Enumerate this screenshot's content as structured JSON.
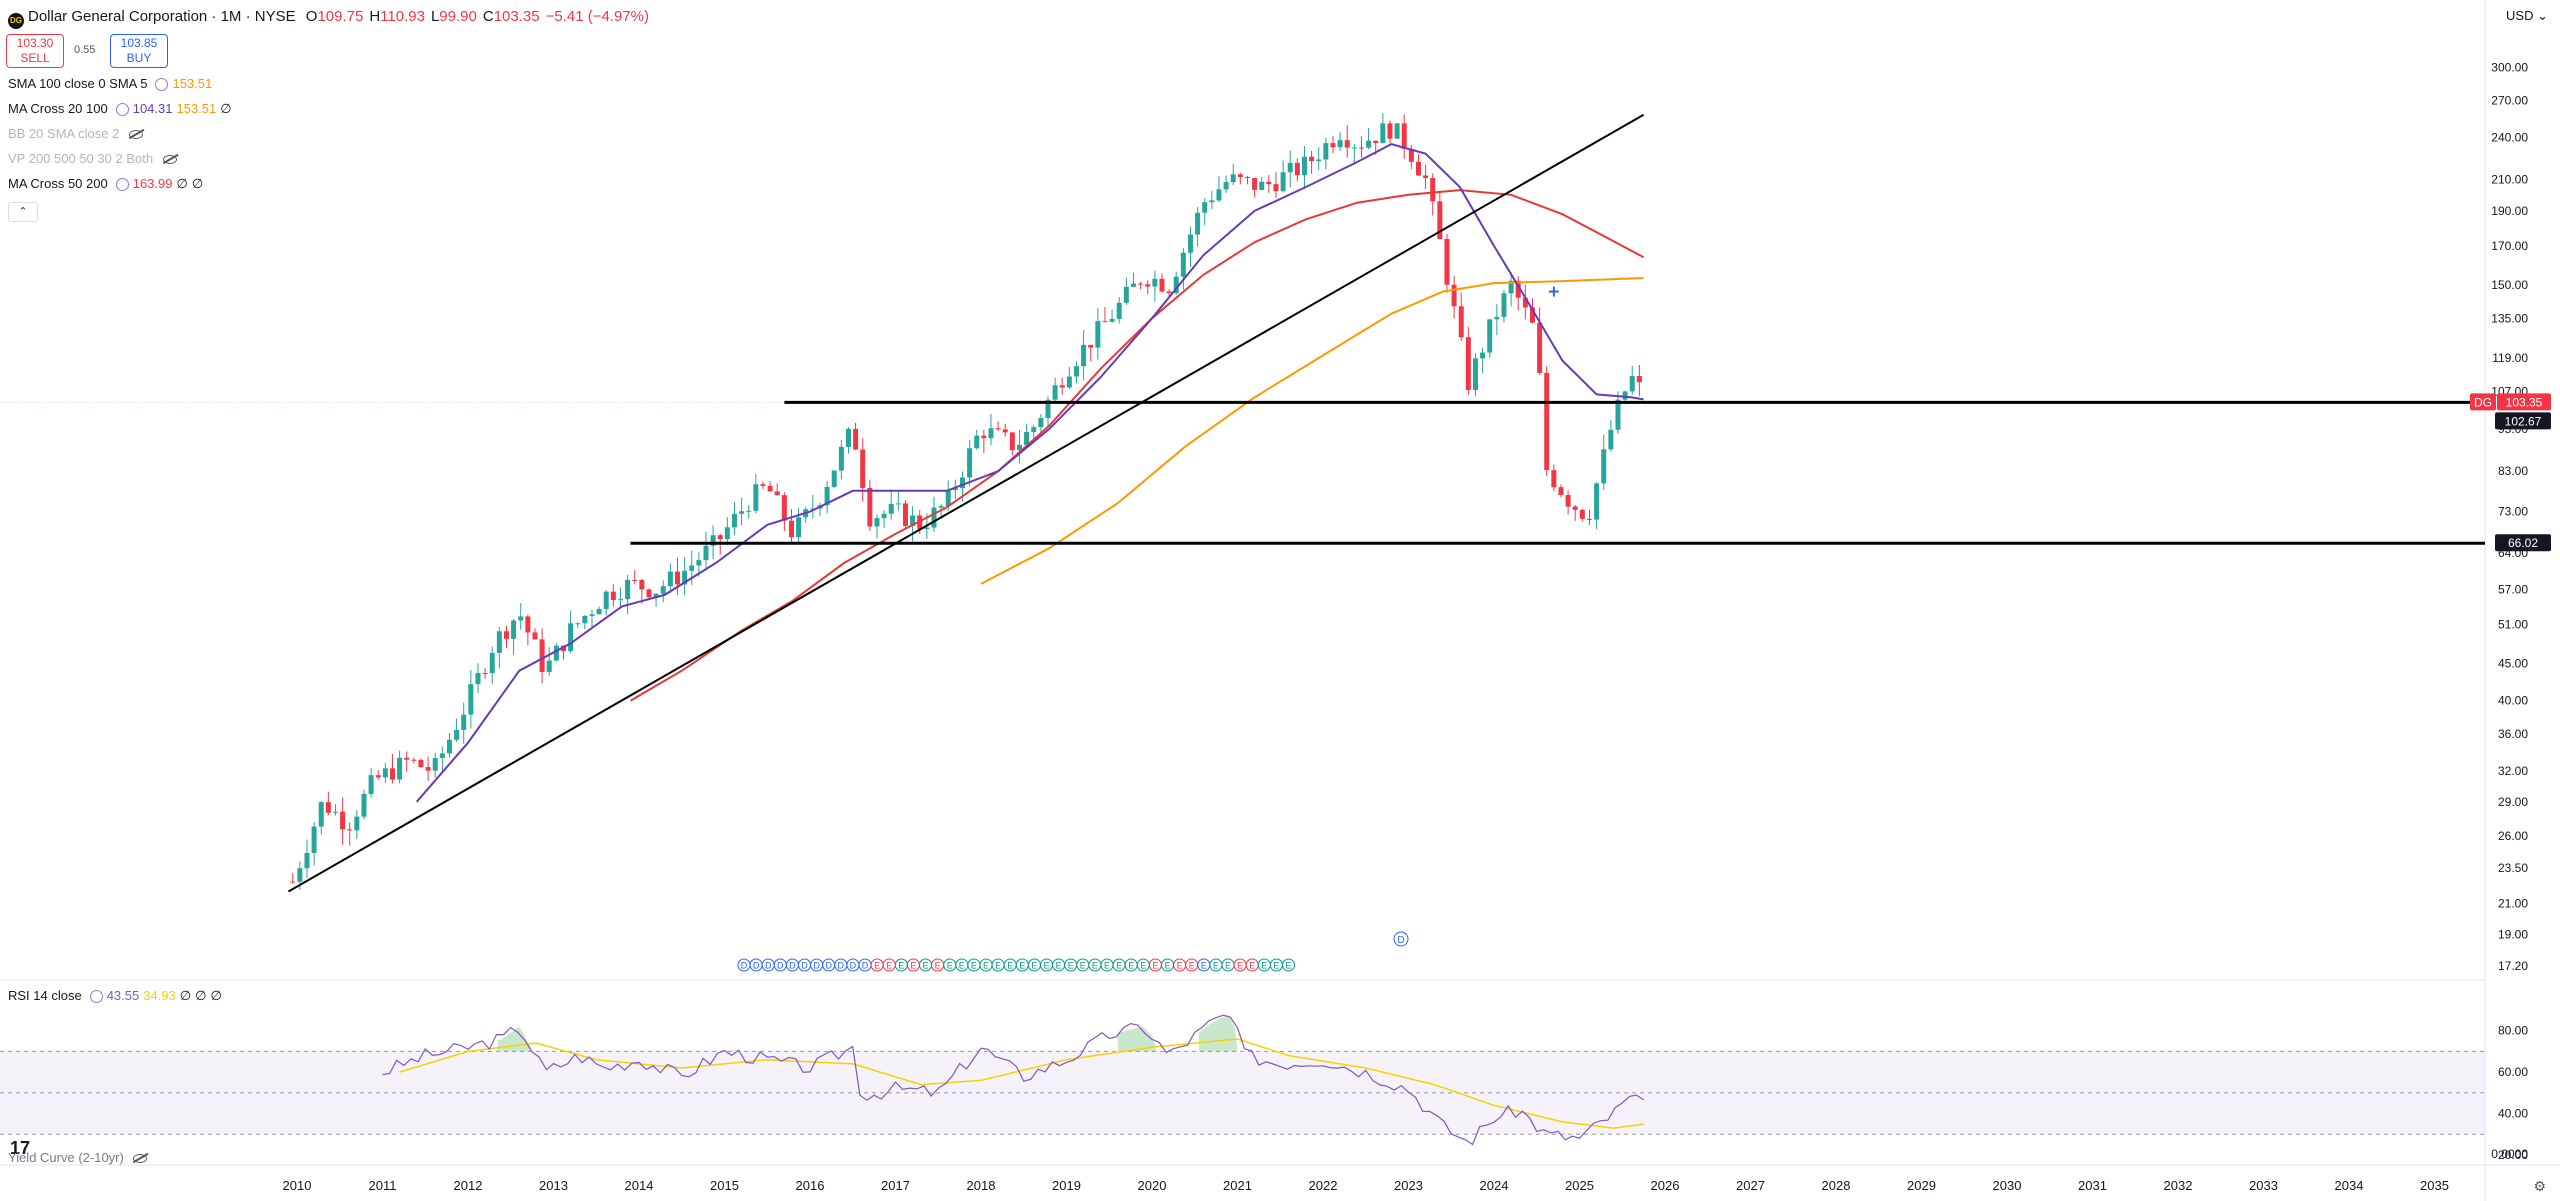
{
  "header": {
    "title": "Dollar General Corporation · 1M · NYSE",
    "ohlc": [
      {
        "k": "O",
        "v": "109.75"
      },
      {
        "k": "H",
        "v": "110.93"
      },
      {
        "k": "L",
        "v": "99.90"
      },
      {
        "k": "C",
        "v": "103.35"
      },
      {
        "k": "",
        "v": "−5.41 (−4.97%)"
      }
    ],
    "sell_price": "103.30",
    "sell_label": "SELL",
    "spread": "0.55",
    "buy_price": "103.85",
    "buy_label": "BUY",
    "currency": "USD"
  },
  "indicators": [
    {
      "label": "SMA 100 close 0 SMA 5",
      "values": [
        "153.51"
      ],
      "value_colors": [
        "#ff9800"
      ],
      "faded": false,
      "icon": "settings-circle-icon"
    },
    {
      "label": "MA Cross 20 100",
      "values": [
        "104.31",
        "153.51",
        "∅"
      ],
      "value_colors": [
        "#673ab7",
        "#ff9800",
        "#131722"
      ],
      "faded": false,
      "icon": "settings-circle-icon"
    },
    {
      "label": "BB 20 SMA close 2",
      "values": [],
      "value_colors": [],
      "faded": true,
      "icon": "eye-hidden-icon"
    },
    {
      "label": "VP 200 500 50 30 2 Both",
      "values": [],
      "value_colors": [],
      "faded": true,
      "icon": "eye-hidden-icon"
    },
    {
      "label": "MA Cross 50 200",
      "values": [
        "163.99",
        "∅",
        "∅"
      ],
      "value_colors": [
        "#f23645",
        "#131722",
        "#131722"
      ],
      "faded": false,
      "icon": "settings-circle-icon"
    }
  ],
  "rsi_legend": {
    "label": "RSI 14 close",
    "values": [
      "43.55",
      "34.93",
      "∅",
      "∅",
      "∅"
    ],
    "value_colors": [
      "#7e57c2",
      "#f7d200",
      "#131722",
      "#131722",
      "#131722"
    ]
  },
  "yield_legend": "Yield Curve (2-10yr)",
  "colors": {
    "up": "#26a69a",
    "down": "#f23645",
    "sma20": "#673ab7",
    "sma100": "#ff9800",
    "sma200": "#e53935",
    "rsi": "#7e57c2",
    "rsi_ma": "#f7d200"
  },
  "chart_data": {
    "type": "candlestick",
    "scale": "log",
    "ylim": [
      17.2,
      315
    ],
    "y_ticks": [
      "300.00",
      "270.00",
      "240.00",
      "210.00",
      "190.00",
      "170.00",
      "150.00",
      "135.00",
      "119.00",
      "107.00",
      "95.00",
      "83.00",
      "73.00",
      "64.00",
      "57.00",
      "51.00",
      "45.00",
      "40.00",
      "36.00",
      "32.00",
      "29.00",
      "26.00",
      "23.50",
      "21.00",
      "19.00",
      "17.20"
    ],
    "x_ticks": [
      "2010",
      "2011",
      "2012",
      "2013",
      "2014",
      "2015",
      "2016",
      "2017",
      "2018",
      "2019",
      "2020",
      "2021",
      "2022",
      "2023",
      "2024",
      "2025",
      "2026",
      "2027",
      "2028",
      "2029",
      "2030",
      "2031",
      "2032",
      "2033",
      "2034",
      "2035"
    ],
    "price_labels": [
      {
        "text": "DG",
        "value": 103.35,
        "color": "#f23645"
      },
      {
        "text": "103.35",
        "value": 103.35,
        "color": "#f23645"
      },
      {
        "text": "102.67",
        "value": 102.67,
        "color": "#131722"
      },
      {
        "text": "66.02",
        "value": 66.02,
        "color": "#131722"
      }
    ],
    "monthly_close_anchors": [
      {
        "t": 2009.95,
        "v": 22.5
      },
      {
        "t": 2010.3,
        "v": 29
      },
      {
        "t": 2010.6,
        "v": 27
      },
      {
        "t": 2010.9,
        "v": 31
      },
      {
        "t": 2011.3,
        "v": 33
      },
      {
        "t": 2011.6,
        "v": 32
      },
      {
        "t": 2012.0,
        "v": 40
      },
      {
        "t": 2012.3,
        "v": 48
      },
      {
        "t": 2012.6,
        "v": 53
      },
      {
        "t": 2012.9,
        "v": 44
      },
      {
        "t": 2013.2,
        "v": 50
      },
      {
        "t": 2013.6,
        "v": 56
      },
      {
        "t": 2013.9,
        "v": 58
      },
      {
        "t": 2014.2,
        "v": 57
      },
      {
        "t": 2014.5,
        "v": 60
      },
      {
        "t": 2014.9,
        "v": 66
      },
      {
        "t": 2015.3,
        "v": 76
      },
      {
        "t": 2015.5,
        "v": 79
      },
      {
        "t": 2015.8,
        "v": 68
      },
      {
        "t": 2016.1,
        "v": 76
      },
      {
        "t": 2016.5,
        "v": 95
      },
      {
        "t": 2016.7,
        "v": 72
      },
      {
        "t": 2017.0,
        "v": 73
      },
      {
        "t": 2017.3,
        "v": 70
      },
      {
        "t": 2017.6,
        "v": 75
      },
      {
        "t": 2018.0,
        "v": 95
      },
      {
        "t": 2018.4,
        "v": 90
      },
      {
        "t": 2018.6,
        "v": 95
      },
      {
        "t": 2019.0,
        "v": 115
      },
      {
        "t": 2019.5,
        "v": 135
      },
      {
        "t": 2019.9,
        "v": 155
      },
      {
        "t": 2020.2,
        "v": 150
      },
      {
        "t": 2020.6,
        "v": 195
      },
      {
        "t": 2020.9,
        "v": 210
      },
      {
        "t": 2021.3,
        "v": 205
      },
      {
        "t": 2021.8,
        "v": 220
      },
      {
        "t": 2022.2,
        "v": 245
      },
      {
        "t": 2022.4,
        "v": 235
      },
      {
        "t": 2022.8,
        "v": 248
      },
      {
        "t": 2023.0,
        "v": 232
      },
      {
        "t": 2023.2,
        "v": 210
      },
      {
        "t": 2023.4,
        "v": 165
      },
      {
        "t": 2023.7,
        "v": 110
      },
      {
        "t": 2024.0,
        "v": 135
      },
      {
        "t": 2024.2,
        "v": 150
      },
      {
        "t": 2024.5,
        "v": 128
      },
      {
        "t": 2024.6,
        "v": 84
      },
      {
        "t": 2024.9,
        "v": 75
      },
      {
        "t": 2025.1,
        "v": 72
      },
      {
        "t": 2025.4,
        "v": 98
      },
      {
        "t": 2025.6,
        "v": 112
      },
      {
        "t": 2025.7,
        "v": 108
      },
      {
        "t": 2025.75,
        "v": 103.35
      }
    ],
    "sma20": [
      {
        "t": 2011.4,
        "v": 29
      },
      {
        "t": 2012.0,
        "v": 35
      },
      {
        "t": 2012.6,
        "v": 44
      },
      {
        "t": 2013.2,
        "v": 48
      },
      {
        "t": 2013.8,
        "v": 54
      },
      {
        "t": 2014.3,
        "v": 56
      },
      {
        "t": 2014.9,
        "v": 62
      },
      {
        "t": 2015.5,
        "v": 70
      },
      {
        "t": 2016.0,
        "v": 73
      },
      {
        "t": 2016.5,
        "v": 78
      },
      {
        "t": 2017.0,
        "v": 78
      },
      {
        "t": 2017.6,
        "v": 78
      },
      {
        "t": 2018.2,
        "v": 83
      },
      {
        "t": 2018.8,
        "v": 95
      },
      {
        "t": 2019.4,
        "v": 112
      },
      {
        "t": 2020.0,
        "v": 135
      },
      {
        "t": 2020.6,
        "v": 165
      },
      {
        "t": 2021.2,
        "v": 190
      },
      {
        "t": 2021.8,
        "v": 205
      },
      {
        "t": 2022.4,
        "v": 222
      },
      {
        "t": 2022.8,
        "v": 235
      },
      {
        "t": 2023.2,
        "v": 228
      },
      {
        "t": 2023.6,
        "v": 205
      },
      {
        "t": 2024.0,
        "v": 170
      },
      {
        "t": 2024.4,
        "v": 142
      },
      {
        "t": 2024.8,
        "v": 118
      },
      {
        "t": 2025.2,
        "v": 106
      },
      {
        "t": 2025.6,
        "v": 105
      },
      {
        "t": 2025.75,
        "v": 104.31
      }
    ],
    "sma100": [
      {
        "t": 2018.0,
        "v": 58
      },
      {
        "t": 2018.8,
        "v": 65
      },
      {
        "t": 2019.6,
        "v": 75
      },
      {
        "t": 2020.4,
        "v": 90
      },
      {
        "t": 2021.2,
        "v": 105
      },
      {
        "t": 2022.0,
        "v": 120
      },
      {
        "t": 2022.8,
        "v": 137
      },
      {
        "t": 2023.4,
        "v": 147
      },
      {
        "t": 2024.0,
        "v": 151
      },
      {
        "t": 2024.8,
        "v": 152
      },
      {
        "t": 2025.75,
        "v": 153.51
      }
    ],
    "sma200": [
      {
        "t": 2013.9,
        "v": 40
      },
      {
        "t": 2014.5,
        "v": 44
      },
      {
        "t": 2015.2,
        "v": 50
      },
      {
        "t": 2015.8,
        "v": 55
      },
      {
        "t": 2016.4,
        "v": 62
      },
      {
        "t": 2017.0,
        "v": 68
      },
      {
        "t": 2017.6,
        "v": 74
      },
      {
        "t": 2018.2,
        "v": 83
      },
      {
        "t": 2018.8,
        "v": 96
      },
      {
        "t": 2019.4,
        "v": 115
      },
      {
        "t": 2020.0,
        "v": 135
      },
      {
        "t": 2020.6,
        "v": 155
      },
      {
        "t": 2021.2,
        "v": 172
      },
      {
        "t": 2021.8,
        "v": 185
      },
      {
        "t": 2022.4,
        "v": 195
      },
      {
        "t": 2023.0,
        "v": 200
      },
      {
        "t": 2023.6,
        "v": 203
      },
      {
        "t": 2024.2,
        "v": 200
      },
      {
        "t": 2024.8,
        "v": 188
      },
      {
        "t": 2025.3,
        "v": 175
      },
      {
        "t": 2025.75,
        "v": 163.99
      }
    ],
    "horizontal_lines": [
      {
        "from": 2015.7,
        "value": 103.35
      },
      {
        "from": 2013.9,
        "value": 66.02
      }
    ],
    "trend_line": {
      "start": {
        "t": 2009.9,
        "v": 21.8
      },
      "end": {
        "t": 2025.75,
        "v": 258
      }
    },
    "events": {
      "row": [
        "D",
        "D",
        "D",
        "D",
        "D",
        "D",
        "D",
        "D",
        "D",
        "D",
        "D",
        "E",
        "E",
        "E",
        "E",
        "E",
        "E",
        "E",
        "E",
        "E",
        "E",
        "E",
        "E",
        "E",
        "E",
        "E",
        "E",
        "E",
        "E",
        "E",
        "E",
        "E",
        "E",
        "E",
        "E",
        "E",
        "E",
        "E",
        "E",
        "E",
        "E",
        "E",
        "E",
        "E",
        "E",
        "E"
      ],
      "colors": [
        "b",
        "b",
        "b",
        "b",
        "b",
        "b",
        "b",
        "b",
        "b",
        "b",
        "b",
        "r",
        "r",
        "g",
        "r",
        "g",
        "r",
        "g",
        "g",
        "g",
        "g",
        "g",
        "g",
        "g",
        "g",
        "g",
        "g",
        "g",
        "g",
        "g",
        "g",
        "g",
        "g",
        "g",
        "r",
        "g",
        "r",
        "r",
        "b",
        "g",
        "g",
        "r",
        "r",
        "g",
        "g",
        "g"
      ],
      "above": "D"
    },
    "rsi": {
      "ylim": [
        20,
        90
      ],
      "ticks": [
        "80.00",
        "60.00",
        "40.00",
        "20.00"
      ],
      "band": [
        30,
        70
      ],
      "legend_values": [
        "43.55",
        "34.93"
      ],
      "anchors": [
        {
          "t": 2011.0,
          "v": 60
        },
        {
          "t": 2011.5,
          "v": 68
        },
        {
          "t": 2012.0,
          "v": 72
        },
        {
          "t": 2012.4,
          "v": 76
        },
        {
          "t": 2012.6,
          "v": 82
        },
        {
          "t": 2012.9,
          "v": 60
        },
        {
          "t": 2013.3,
          "v": 68
        },
        {
          "t": 2013.6,
          "v": 62
        },
        {
          "t": 2014.0,
          "v": 66
        },
        {
          "t": 2014.5,
          "v": 58
        },
        {
          "t": 2015.0,
          "v": 70
        },
        {
          "t": 2015.5,
          "v": 66
        },
        {
          "t": 2016.0,
          "v": 62
        },
        {
          "t": 2016.5,
          "v": 72
        },
        {
          "t": 2016.6,
          "v": 48
        },
        {
          "t": 2017.0,
          "v": 52
        },
        {
          "t": 2017.5,
          "v": 50
        },
        {
          "t": 2018.0,
          "v": 72
        },
        {
          "t": 2018.5,
          "v": 58
        },
        {
          "t": 2019.0,
          "v": 66
        },
        {
          "t": 2019.5,
          "v": 78
        },
        {
          "t": 2019.9,
          "v": 82
        },
        {
          "t": 2020.2,
          "v": 68
        },
        {
          "t": 2020.7,
          "v": 84
        },
        {
          "t": 2020.9,
          "v": 88
        },
        {
          "t": 2021.1,
          "v": 68
        },
        {
          "t": 2021.5,
          "v": 64
        },
        {
          "t": 2022.0,
          "v": 66
        },
        {
          "t": 2022.5,
          "v": 60
        },
        {
          "t": 2023.0,
          "v": 52
        },
        {
          "t": 2023.4,
          "v": 34
        },
        {
          "t": 2023.7,
          "v": 26
        },
        {
          "t": 2024.0,
          "v": 38
        },
        {
          "t": 2024.3,
          "v": 42
        },
        {
          "t": 2024.6,
          "v": 30
        },
        {
          "t": 2025.0,
          "v": 28
        },
        {
          "t": 2025.4,
          "v": 40
        },
        {
          "t": 2025.6,
          "v": 48
        },
        {
          "t": 2025.75,
          "v": 43.55
        }
      ],
      "ma_anchors": [
        {
          "t": 2011.2,
          "v": 60
        },
        {
          "t": 2012.0,
          "v": 70
        },
        {
          "t": 2012.8,
          "v": 74
        },
        {
          "t": 2013.5,
          "v": 66
        },
        {
          "t": 2014.5,
          "v": 62
        },
        {
          "t": 2015.5,
          "v": 66
        },
        {
          "t": 2016.5,
          "v": 64
        },
        {
          "t": 2017.3,
          "v": 54
        },
        {
          "t": 2018.0,
          "v": 56
        },
        {
          "t": 2019.0,
          "v": 66
        },
        {
          "t": 2020.0,
          "v": 72
        },
        {
          "t": 2021.0,
          "v": 76
        },
        {
          "t": 2021.6,
          "v": 68
        },
        {
          "t": 2022.5,
          "v": 62
        },
        {
          "t": 2023.3,
          "v": 54
        },
        {
          "t": 2024.0,
          "v": 44
        },
        {
          "t": 2024.8,
          "v": 36
        },
        {
          "t": 2025.4,
          "v": 33
        },
        {
          "t": 2025.75,
          "v": 34.93
        }
      ]
    }
  }
}
